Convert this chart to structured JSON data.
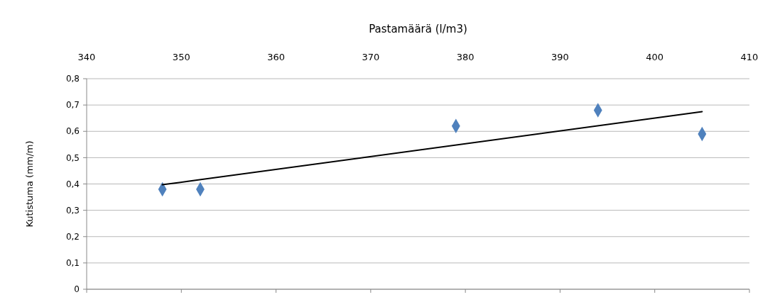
{
  "chart_data": {
    "type": "scatter",
    "xlabel": "Pastamäärä (l/m3)",
    "ylabel": "Kutistuma  (mm/m)",
    "xlim": [
      340,
      410
    ],
    "xticks": [
      340,
      350,
      360,
      370,
      380,
      390,
      400,
      410
    ],
    "ylim": [
      0,
      0.8
    ],
    "yticks": [
      {
        "value": 0,
        "label": "0"
      },
      {
        "value": 0.1,
        "label": "0,1"
      },
      {
        "value": 0.2,
        "label": "0,2"
      },
      {
        "value": 0.3,
        "label": "0,3"
      },
      {
        "value": 0.4,
        "label": "0,4"
      },
      {
        "value": 0.5,
        "label": "0,5"
      },
      {
        "value": 0.6,
        "label": "0,6"
      },
      {
        "value": 0.7,
        "label": "0,7"
      },
      {
        "value": 0.8,
        "label": "0,8"
      }
    ],
    "grid": "y",
    "series": [
      {
        "color": "#4f81bd",
        "x": [
          348,
          352,
          379,
          394,
          405
        ],
        "values": [
          0.38,
          0.38,
          0.62,
          0.68,
          0.59
        ],
        "marker": "diamond"
      },
      {
        "type": "line",
        "color": "#000000",
        "x": [
          348,
          405
        ],
        "values": [
          0.397,
          0.675
        ],
        "line_style": "solid",
        "marker": "none"
      }
    ]
  }
}
